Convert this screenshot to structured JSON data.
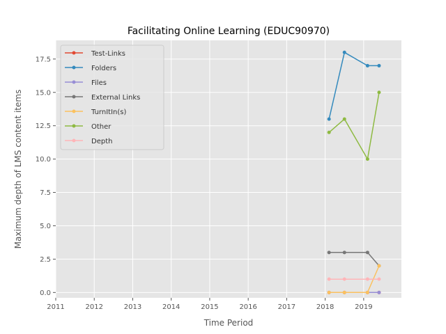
{
  "chart_data": {
    "type": "line",
    "title": "Facilitating Online Learning (EDUC90970)",
    "xlabel": "Time Period",
    "ylabel": "Maximum depth of LMS content items",
    "xlim": [
      2011.0,
      2019.98
    ],
    "ylim": [
      -0.4,
      18.9
    ],
    "x_ticks": [
      "2011",
      "2012",
      "2013",
      "2014",
      "2015",
      "2016",
      "2017",
      "2018",
      "2019"
    ],
    "x_tick_values": [
      2011,
      2012,
      2013,
      2014,
      2015,
      2016,
      2017,
      2018,
      2019
    ],
    "y_ticks": [
      "0.0",
      "2.5",
      "5.0",
      "7.5",
      "10.0",
      "12.5",
      "15.0",
      "17.5"
    ],
    "y_tick_values": [
      0,
      2.5,
      5,
      7.5,
      10,
      12.5,
      15,
      17.5
    ],
    "x": [
      2018.1,
      2018.5,
      2019.1,
      2019.4
    ],
    "grid": true,
    "legend_position": "top-left",
    "series": [
      {
        "name": "Test-Links",
        "color": "#e24a33",
        "values": [
          0,
          0,
          0,
          0
        ]
      },
      {
        "name": "Folders",
        "color": "#348abd",
        "values": [
          13,
          18,
          17,
          17
        ]
      },
      {
        "name": "Files",
        "color": "#988ed5",
        "values": [
          0,
          0,
          0,
          0
        ]
      },
      {
        "name": "External Links",
        "color": "#777777",
        "values": [
          3,
          3,
          3,
          2
        ]
      },
      {
        "name": "TurnItIn(s)",
        "color": "#fbc15e",
        "values": [
          0,
          0,
          0,
          2
        ]
      },
      {
        "name": "Other",
        "color": "#8eba42",
        "values": [
          12,
          13,
          10,
          15
        ]
      },
      {
        "name": "Depth",
        "color": "#ffb5b8",
        "values": [
          1,
          1,
          1,
          1
        ]
      }
    ]
  }
}
